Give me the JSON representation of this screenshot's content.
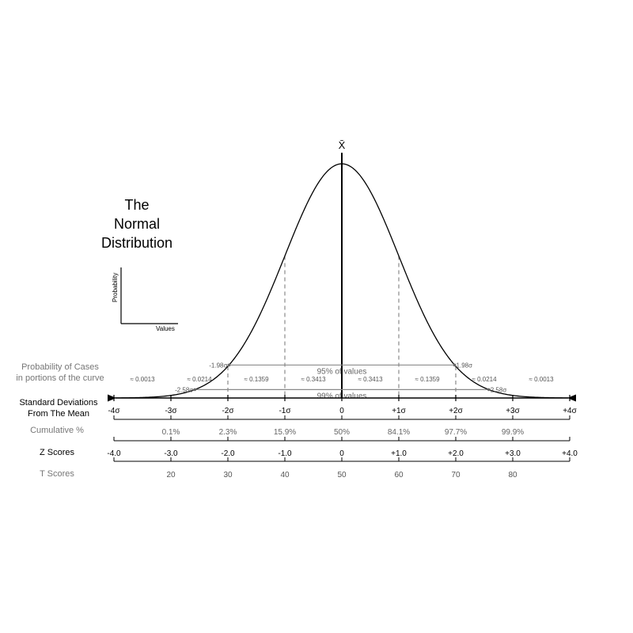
{
  "title": {
    "line1": "The",
    "line2": "Normal",
    "line3": "Distribution"
  },
  "axes_icon": {
    "y_label": "Probability",
    "x_label": "Values"
  },
  "mean_symbol": "X̄",
  "intervals": [
    {
      "label_left": "-1.98σ",
      "label_right": "1.98σ",
      "caption": "95% of values",
      "k": 1.98
    },
    {
      "label_left": "-2.58σ",
      "label_right": "2.58σ",
      "caption": "99% of values",
      "k": 2.58
    }
  ],
  "row_labels": {
    "probability_line1": "Probability of Cases",
    "probability_line2": "in portions of the curve",
    "sd_line1": "Standard Deviations",
    "sd_line2": "From The Mean",
    "cumulative": "Cumulative %",
    "z_scores": "Z Scores",
    "t_scores": "T Scores"
  },
  "portions": [
    "≈ 0.0013",
    "≈ 0.0214",
    "≈ 0.1359",
    "≈ 0.3413",
    "≈ 0.3413",
    "≈ 0.1359",
    "≈ 0.0214",
    "≈ 0.0013"
  ],
  "sd_labels": [
    "-4σ",
    "-3σ",
    "-2σ",
    "-1σ",
    "0",
    "+1σ",
    "+2σ",
    "+3σ",
    "+4σ"
  ],
  "cumulative": [
    "",
    "0.1%",
    "2.3%",
    "15.9%",
    "50%",
    "84.1%",
    "97.7%",
    "99.9%",
    ""
  ],
  "z_scores": [
    "-4.0",
    "-3.0",
    "-2.0",
    "-1.0",
    "0",
    "+1.0",
    "+2.0",
    "+3.0",
    "+4.0"
  ],
  "t_scores": [
    "",
    "20",
    "30",
    "40",
    "50",
    "60",
    "70",
    "80",
    ""
  ],
  "colors": {
    "curve": "#000000",
    "guide": "#8a8a8a",
    "muted_text": "#777777"
  }
}
